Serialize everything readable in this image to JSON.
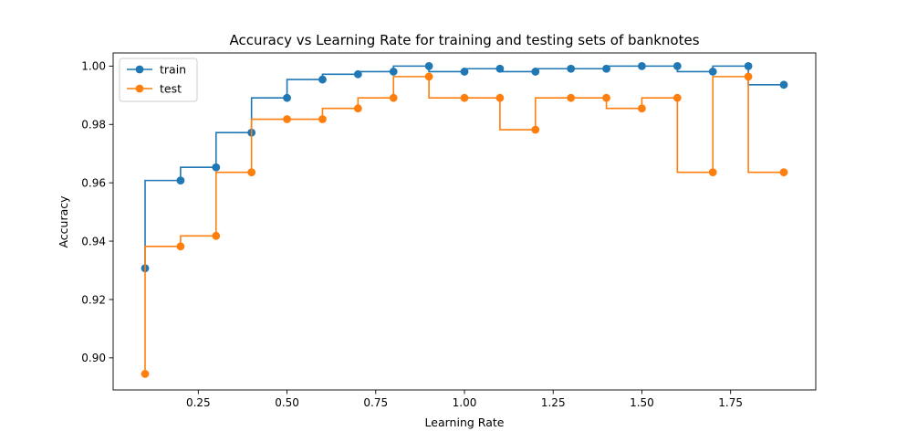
{
  "chart_data": {
    "type": "line",
    "style": "step-pre",
    "title": "Accuracy vs Learning Rate for training and testing sets of banknotes",
    "xlabel": "Learning Rate",
    "ylabel": "Accuracy",
    "xlim": [
      0.01,
      1.99
    ],
    "ylim": [
      0.889,
      1.0045
    ],
    "xticks": [
      0.25,
      0.5,
      0.75,
      1.0,
      1.25,
      1.5,
      1.75
    ],
    "xtick_labels": [
      "0.25",
      "0.50",
      "0.75",
      "1.00",
      "1.25",
      "1.50",
      "1.75"
    ],
    "yticks": [
      0.9,
      0.92,
      0.94,
      0.96,
      0.98,
      1.0
    ],
    "ytick_labels": [
      "0.90",
      "0.92",
      "0.94",
      "0.96",
      "0.98",
      "1.00"
    ],
    "grid": false,
    "legend_position": "upper-left",
    "x": [
      0.1,
      0.2,
      0.3,
      0.4,
      0.5,
      0.6,
      0.7,
      0.8,
      0.9,
      1.0,
      1.1,
      1.2,
      1.3,
      1.4,
      1.5,
      1.6,
      1.7,
      1.8,
      1.9
    ],
    "series": [
      {
        "name": "train",
        "color": "#1f77b4",
        "values": [
          0.9307,
          0.9608,
          0.9653,
          0.9772,
          0.9891,
          0.9954,
          0.9972,
          0.9981,
          1.0,
          0.9981,
          0.9991,
          0.9981,
          0.9991,
          0.9991,
          1.0,
          1.0,
          0.9981,
          1.0,
          0.9936
        ]
      },
      {
        "name": "test",
        "color": "#ff7f0e",
        "values": [
          0.8945,
          0.9382,
          0.9418,
          0.9636,
          0.9818,
          0.9818,
          0.9855,
          0.9891,
          0.9964,
          0.9891,
          0.9891,
          0.9782,
          0.9891,
          0.9891,
          0.9855,
          0.9891,
          0.9636,
          0.9964,
          0.9636
        ]
      }
    ]
  }
}
